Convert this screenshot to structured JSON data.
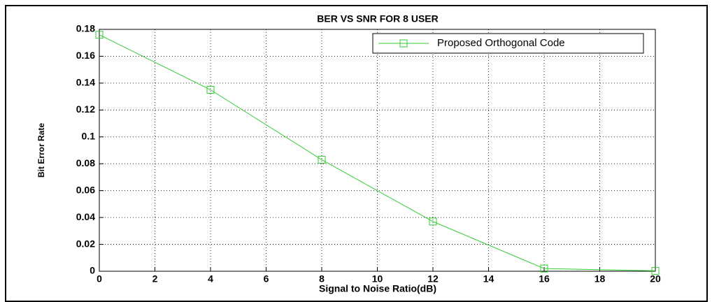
{
  "chart_data": {
    "type": "line",
    "title": "BER VS SNR FOR 8 USER",
    "x_label": "Signal to Noise Ratio(dB)",
    "y_label": "Bit Error Rate",
    "x": [
      0,
      4,
      8,
      12,
      16,
      20
    ],
    "series": [
      {
        "name": "Proposed Orthogonal Code",
        "color": "#33cc33",
        "values": [
          0.176,
          0.135,
          0.083,
          0.037,
          0.002,
          0.0003
        ]
      }
    ],
    "xlim": [
      0,
      20
    ],
    "xticks": [
      0,
      2,
      4,
      6,
      8,
      10,
      12,
      14,
      16,
      18,
      20
    ],
    "ylim": [
      0,
      0.18
    ],
    "yticks": [
      0,
      0.02,
      0.04,
      0.06,
      0.08,
      0.1,
      0.12,
      0.14,
      0.16,
      0.18
    ],
    "grid": true,
    "legend": "northeast",
    "marker": "square"
  }
}
